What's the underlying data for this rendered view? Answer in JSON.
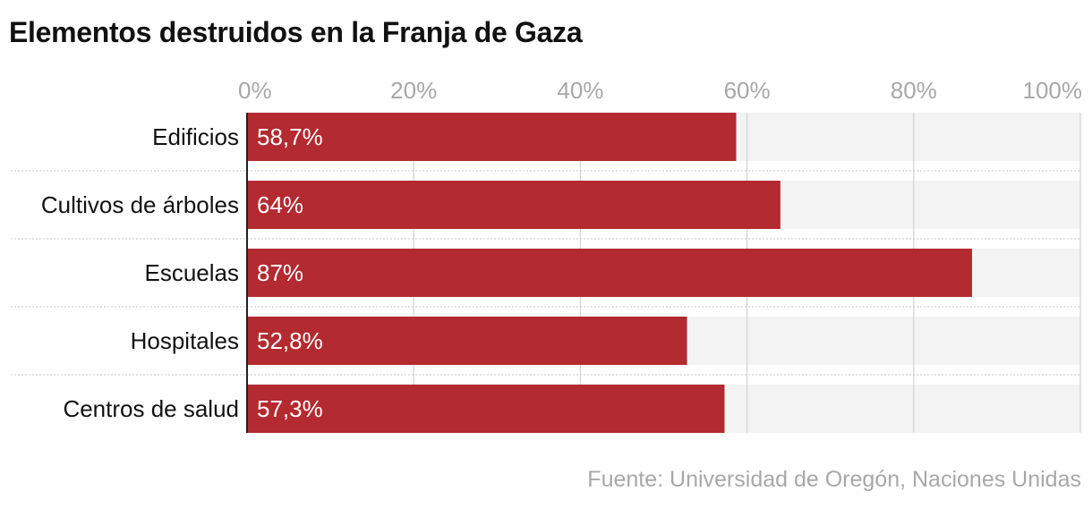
{
  "title": "Elementos destruidos en la Franja de Gaza",
  "source": "Fuente: Universidad de Oregón, Naciones Unidas",
  "colors": {
    "bar": "#b32a30",
    "track": "#f3f3f3",
    "grid": "#d2d2d2",
    "tick": "#a8a8a8",
    "label": "#111111",
    "value": "#ffffff"
  },
  "chart_data": {
    "type": "bar",
    "orientation": "horizontal",
    "title": "Elementos destruidos en la Franja de Gaza",
    "categories": [
      "Edificios",
      "Cultivos de árboles",
      "Escuelas",
      "Hospitales",
      "Centros de salud"
    ],
    "values": [
      58.7,
      64,
      87,
      52.8,
      57.3
    ],
    "value_labels": [
      "58,7%",
      "64%",
      "87%",
      "52,8%",
      "57,3%"
    ],
    "xlim": [
      0,
      100
    ],
    "xticks": [
      0,
      20,
      40,
      60,
      80,
      100
    ],
    "xtick_labels": [
      "0%",
      "20%",
      "40%",
      "60%",
      "80%",
      "100%"
    ],
    "xlabel": "",
    "ylabel": "",
    "grid": true,
    "legend": "none"
  }
}
